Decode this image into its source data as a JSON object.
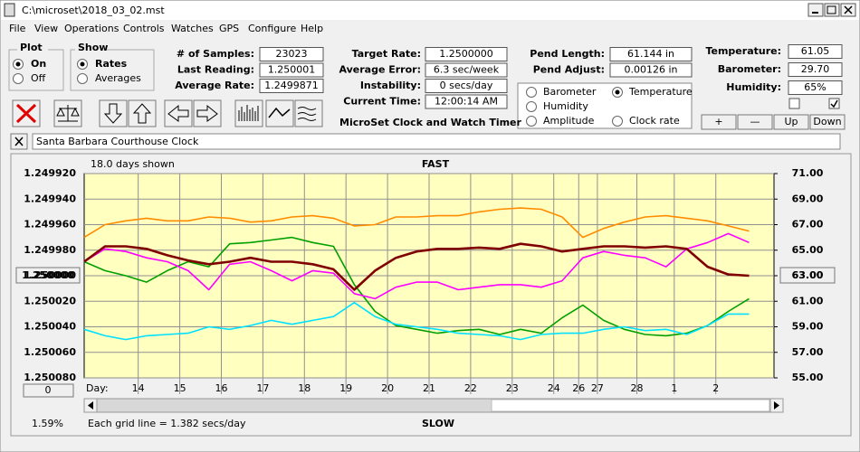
{
  "window": {
    "title": "C:\\microset\\2018_03_02.mst"
  },
  "menu": [
    "File",
    "View",
    "Operations",
    "Controls",
    "Watches",
    "GPS",
    "Configure",
    "Help"
  ],
  "plot_group": {
    "title": "Plot",
    "options": [
      "On",
      "Off"
    ],
    "selected": 0
  },
  "show_group": {
    "title": "Show",
    "options": [
      "Rates",
      "Averages"
    ],
    "selected": 0
  },
  "field_groups": [
    [
      {
        "label": "# of Samples:",
        "value": "23023"
      },
      {
        "label": "Last Reading:",
        "value": "1.250001"
      },
      {
        "label": "Average Rate:",
        "value": "1.2499871"
      }
    ],
    [
      {
        "label": "Target Rate:",
        "value": "1.2500000"
      },
      {
        "label": "Average Error:",
        "value": "6.3 sec/week"
      },
      {
        "label": "Instability:",
        "value": "0 secs/day"
      },
      {
        "label": "Current Time:",
        "value": "12:00:14 AM"
      }
    ],
    [
      {
        "label": "Pend Length:",
        "value": "61.144 in"
      },
      {
        "label": "Pend Adjust:",
        "value": "0.00126 in"
      }
    ],
    [
      {
        "label": "Temperature:",
        "value": "61.05"
      },
      {
        "label": "Barometer:",
        "value": "29.70"
      },
      {
        "label": "Humidity:",
        "value": "65%"
      }
    ]
  ],
  "checkboxes": [
    false,
    true
  ],
  "env_buttons": [
    "+",
    "—",
    "Up",
    "Down"
  ],
  "program_title": "MicroSet Clock and Watch Timer",
  "clock_name": "Santa Barbara Courthouse Clock",
  "chart_data": {
    "type": "line",
    "top_annotation": "FAST",
    "bottom_annotation": "SLOW",
    "days_shown": "18.0 days shown",
    "xlabel": "Day:",
    "center_button": "1.250000",
    "right_button": "63.00",
    "zero_button": "0",
    "percent": "1.59%",
    "grid_note": "Each grid line = 1.382 secs/day",
    "grid": true,
    "legend_selected": 1,
    "xlim": [
      0,
      16.6
    ],
    "xticks": [
      {
        "value": 1.3,
        "label": "14"
      },
      {
        "value": 2.3,
        "label": "15"
      },
      {
        "value": 3.3,
        "label": "16"
      },
      {
        "value": 4.3,
        "label": "17"
      },
      {
        "value": 5.3,
        "label": "18"
      },
      {
        "value": 6.3,
        "label": "19"
      },
      {
        "value": 7.3,
        "label": "20"
      },
      {
        "value": 8.3,
        "label": "21"
      },
      {
        "value": 9.3,
        "label": "22"
      },
      {
        "value": 10.3,
        "label": "23"
      },
      {
        "value": 11.3,
        "label": "24"
      },
      {
        "value": 11.9,
        "label": "26"
      },
      {
        "value": 12.35,
        "label": "27"
      },
      {
        "value": 13.3,
        "label": "28"
      },
      {
        "value": 14.2,
        "label": "1"
      },
      {
        "value": 15.2,
        "label": "2"
      }
    ],
    "ylim": [
      1.25008,
      1.24992
    ],
    "yticks": [
      {
        "value": 1.24992,
        "label": "1.249920"
      },
      {
        "value": 1.24994,
        "label": "1.249940"
      },
      {
        "value": 1.24996,
        "label": "1.249960"
      },
      {
        "value": 1.24998,
        "label": "1.249980"
      },
      {
        "value": 1.25,
        "label": "1.250000"
      },
      {
        "value": 1.25002,
        "label": "1.250020"
      },
      {
        "value": 1.25004,
        "label": "1.250040"
      },
      {
        "value": 1.25006,
        "label": "1.250060"
      },
      {
        "value": 1.25008,
        "label": "1.250080"
      }
    ],
    "y2lim": [
      55,
      71
    ],
    "y2ticks": [
      {
        "value": 71,
        "label": "71.00"
      },
      {
        "value": 69,
        "label": "69.00"
      },
      {
        "value": 67,
        "label": "67.00"
      },
      {
        "value": 65,
        "label": "65.00"
      },
      {
        "value": 63,
        "label": "63.00"
      },
      {
        "value": 61,
        "label": "61.00"
      },
      {
        "value": 59,
        "label": "59.00"
      },
      {
        "value": 57,
        "label": "57.00"
      },
      {
        "value": 55,
        "label": "55.00"
      }
    ],
    "x": [
      0,
      0.5,
      1,
      1.5,
      2,
      2.5,
      3,
      3.5,
      4,
      4.5,
      5,
      5.5,
      6,
      6.5,
      7,
      7.5,
      8,
      8.5,
      9,
      9.5,
      10,
      10.5,
      11,
      11.5,
      12,
      12.5,
      13,
      13.5,
      14,
      14.5,
      15,
      15.5,
      16
    ],
    "series": [
      {
        "name": "Barometer",
        "color": "#ff8c00",
        "axis": "y2",
        "values": [
          66.0,
          67.0,
          67.3,
          67.5,
          67.3,
          67.3,
          67.6,
          67.5,
          67.2,
          67.3,
          67.6,
          67.7,
          67.5,
          66.9,
          67.0,
          67.6,
          67.6,
          67.7,
          67.7,
          68.0,
          68.2,
          68.3,
          68.2,
          67.6,
          66.0,
          66.7,
          67.2,
          67.6,
          67.7,
          67.5,
          67.3,
          66.9,
          66.5
        ]
      },
      {
        "name": "Temperature",
        "color": "#00a000",
        "axis": "y2",
        "values": [
          64.1,
          63.4,
          63.0,
          62.5,
          63.4,
          64.1,
          63.7,
          65.5,
          65.6,
          65.8,
          66.0,
          65.6,
          65.3,
          62.3,
          60.2,
          59.1,
          58.8,
          58.5,
          58.7,
          58.8,
          58.4,
          58.8,
          58.5,
          59.7,
          60.7,
          59.5,
          58.8,
          58.4,
          58.3,
          58.5,
          59.1,
          60.2,
          61.2
        ]
      },
      {
        "name": "Humidity",
        "color": "#ff00ff",
        "axis": "y2",
        "values": [
          64.1,
          65.1,
          64.9,
          64.4,
          64.1,
          63.4,
          61.9,
          63.9,
          64.1,
          63.4,
          62.6,
          63.4,
          63.2,
          61.6,
          61.2,
          62.1,
          62.5,
          62.5,
          61.9,
          62.1,
          62.3,
          62.3,
          62.1,
          62.6,
          64.4,
          64.9,
          64.6,
          64.4,
          63.7,
          65.1,
          65.6,
          66.3,
          65.6
        ]
      },
      {
        "name": "Amplitude",
        "color": "#00e0ff",
        "axis": "y2",
        "values": [
          58.8,
          58.3,
          58.0,
          58.3,
          58.4,
          58.5,
          59.0,
          58.8,
          59.1,
          59.5,
          59.2,
          59.5,
          59.8,
          60.9,
          59.8,
          59.2,
          59.0,
          58.8,
          58.5,
          58.4,
          58.3,
          58.0,
          58.4,
          58.5,
          58.5,
          58.8,
          59.0,
          58.7,
          58.8,
          58.4,
          59.1,
          60.0,
          60.0
        ]
      },
      {
        "name": "Clock rate",
        "color": "#800000",
        "axis": "y",
        "values": [
          1.249989,
          1.249977,
          1.249977,
          1.249979,
          1.249984,
          1.249988,
          1.249991,
          1.249989,
          1.249986,
          1.249989,
          1.249989,
          1.249991,
          1.249995,
          1.250011,
          1.249996,
          1.249986,
          1.249981,
          1.249979,
          1.249979,
          1.249978,
          1.249979,
          1.249975,
          1.249977,
          1.249981,
          1.249979,
          1.249977,
          1.249977,
          1.249978,
          1.249977,
          1.249979,
          1.249993,
          1.249999,
          1.25
        ]
      }
    ]
  }
}
